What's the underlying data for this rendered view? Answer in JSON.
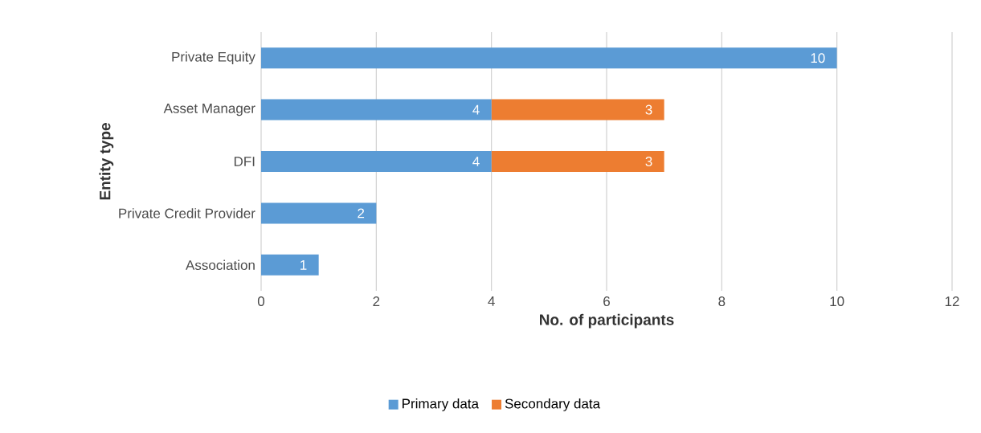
{
  "chart_data": {
    "type": "bar",
    "orientation": "horizontal",
    "stacked": true,
    "xlabel": "No. of participants",
    "ylabel": "Entity type",
    "categories": [
      "Private Equity",
      "Asset Manager",
      "DFI",
      "Private Credit Provider",
      "Association"
    ],
    "series": [
      {
        "name": "Primary data",
        "color": "#5b9bd5",
        "values": [
          10,
          4,
          4,
          2,
          1
        ]
      },
      {
        "name": "Secondary data",
        "color": "#ed7d31",
        "values": [
          null,
          3,
          3,
          null,
          null
        ]
      }
    ],
    "xlim": [
      0,
      12
    ],
    "xticks": [
      0,
      2,
      4,
      6,
      8,
      10,
      12
    ],
    "grid": "x",
    "legend": "bottom",
    "data_labels": true
  }
}
